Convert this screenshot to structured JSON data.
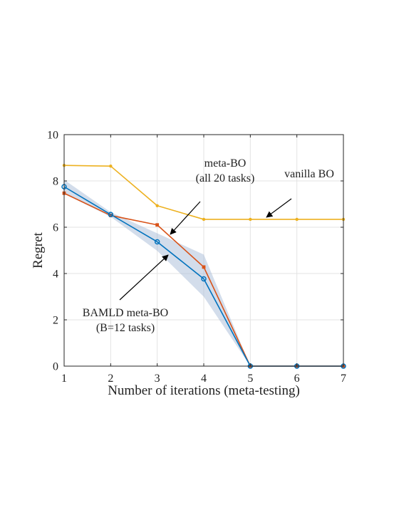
{
  "chart_data": {
    "type": "line",
    "title": "",
    "xlabel": "Number of iterations (meta-testing)",
    "ylabel": "Regret",
    "xlim": [
      1,
      7
    ],
    "ylim": [
      0,
      10
    ],
    "xticks": [
      1,
      2,
      3,
      4,
      5,
      6,
      7
    ],
    "yticks": [
      0,
      2,
      4,
      6,
      8,
      10
    ],
    "grid": true,
    "legend": "none",
    "x": [
      1,
      2,
      3,
      4,
      5,
      6,
      7
    ],
    "series": [
      {
        "id": "vanilla",
        "color": "#EDB120",
        "marker": "dot",
        "values": [
          8.67,
          8.64,
          6.93,
          6.34,
          6.34,
          6.34,
          6.34
        ]
      },
      {
        "id": "metabo",
        "color": "#D95319",
        "marker": "square",
        "values": [
          7.47,
          6.51,
          6.1,
          4.28,
          0,
          0,
          0
        ]
      },
      {
        "id": "bamld",
        "color": "#0072BD",
        "marker": "circle",
        "values": [
          7.75,
          6.55,
          5.37,
          3.77,
          0,
          0,
          0
        ],
        "band_lower": [
          7.45,
          6.45,
          4.98,
          3.0,
          0,
          0,
          0
        ],
        "band_upper": [
          8.05,
          6.65,
          5.74,
          4.82,
          0,
          0,
          0
        ],
        "band_color": "#9DB4D3"
      }
    ],
    "annotations": [
      {
        "id": "vanilla",
        "lines": [
          "vanilla BO"
        ]
      },
      {
        "id": "metabo",
        "lines": [
          "meta-BO",
          "(all 20 tasks)"
        ]
      },
      {
        "id": "bamld",
        "lines": [
          "BAMLD meta-BO",
          "(B=12 tasks)"
        ]
      }
    ]
  }
}
